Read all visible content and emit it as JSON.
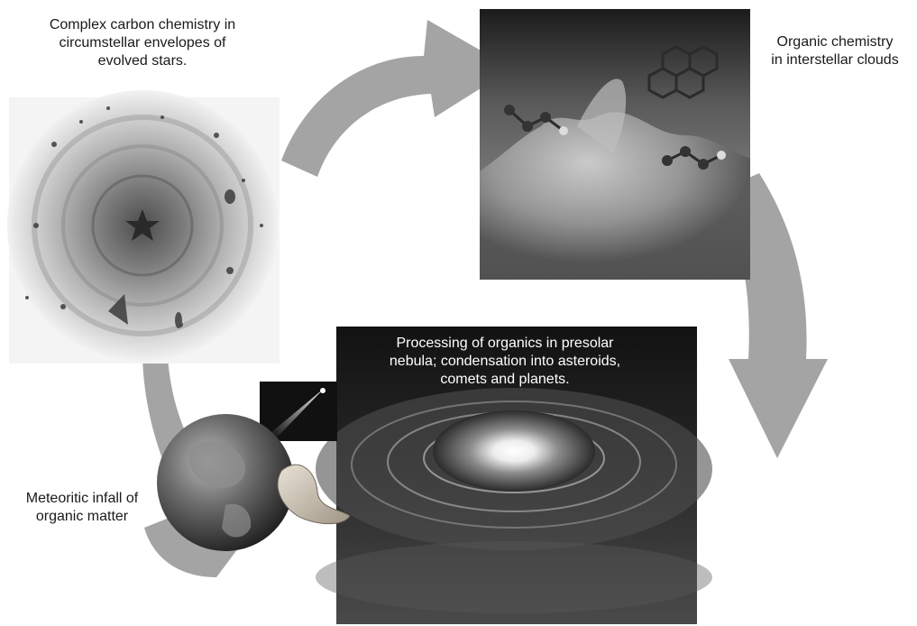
{
  "stages": {
    "circumstellar": {
      "caption": "Complex carbon chemistry in\ncircumstellar envelopes of\nevolved stars."
    },
    "interstellar": {
      "caption": "Organic chemistry\nin interstellar clouds"
    },
    "nebula": {
      "caption": "Processing of organics in presolar\nnebula; condensation into asteroids,\ncomets and planets."
    },
    "meteoritic": {
      "caption": "Meteoritic infall of\norganic matter"
    }
  },
  "colors": {
    "arrow": "#a4a4a4",
    "label_text": "#1a1a1a",
    "nebula_label_text": "#ffffff"
  }
}
